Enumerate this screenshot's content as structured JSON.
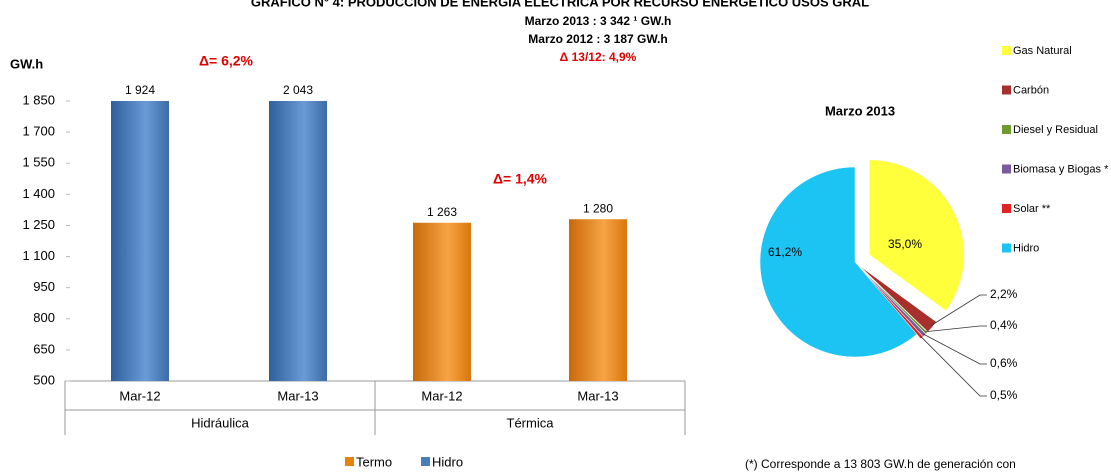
{
  "chart_data": [
    {
      "type": "bar",
      "title": "GRÁFICO N° 4: PRODUCCIÓN DE ENERGÍA ELÉCTRICA POR RECURSO ENERGÉTICO USOS GRAL",
      "ylabel": "GW.h",
      "annotations": [
        "Marzo 2013 : 3 342 ¹ GW.h",
        "Marzo 2012 : 3 187   GW.h",
        "Δ 13/12: 4,9%",
        "Δ= 6,2%",
        "Δ= 1,4%"
      ],
      "categories": [
        "Mar-12",
        "Mar-13",
        "Mar-12",
        "Mar-13"
      ],
      "groups": [
        "Hidráulica",
        "Térmica"
      ],
      "series": [
        {
          "name": "Termo",
          "color": "#e8820e",
          "values": [
            null,
            null,
            1263,
            1280
          ],
          "value_labels": [
            null,
            null,
            "1 263",
            "1 280"
          ]
        },
        {
          "name": "Hidro",
          "color": "#4a7ebb",
          "values": [
            1924,
            2043,
            null,
            null
          ],
          "value_labels": [
            "1 924",
            "2 043",
            null,
            null
          ]
        }
      ],
      "ylim": [
        500,
        1850
      ],
      "yticks": [
        500,
        650,
        800,
        950,
        {
          "value": 1100,
          "label": "1 100"
        },
        {
          "value": 1250,
          "label": "1 250"
        },
        {
          "value": 1400,
          "label": "1 400"
        },
        {
          "value": 1550,
          "label": "1 550"
        },
        {
          "value": 1700,
          "label": "1 700"
        },
        {
          "value": 1850,
          "label": "1 850"
        }
      ],
      "legend": "bottom"
    },
    {
      "type": "pie",
      "title": "Marzo  2013",
      "categories": [
        "Gas Natural",
        "Carbón",
        "Diesel y Residual",
        "Biomasa y Biogas *",
        "Solar **",
        "Hidro"
      ],
      "values": [
        35.0,
        2.2,
        0.4,
        0.6,
        0.5,
        61.2
      ],
      "value_labels": [
        "35,0%",
        "2,2%",
        "0,4%",
        "0,6%",
        "0,5%",
        "61,2%"
      ],
      "colors": [
        "#ffff3c",
        "#a8302c",
        "#6f9a2e",
        "#7a5c9e",
        "#e02424",
        "#1cc4f4"
      ],
      "footnote": "(*) Corresponde a  13 803 GW.h  de generación con",
      "legend": "right"
    }
  ]
}
